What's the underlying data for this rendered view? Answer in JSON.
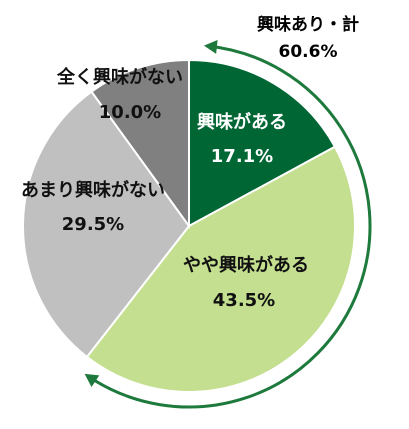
{
  "chart_data": {
    "type": "pie",
    "slices": [
      {
        "label": "興味がある",
        "value": 17.1,
        "value_label": "17.1%",
        "color": "#006633",
        "text_color": "#ffffff"
      },
      {
        "label": "やや興味がある",
        "value": 43.5,
        "value_label": "43.5%",
        "color": "#c4df8f",
        "text_color": "#111111"
      },
      {
        "label": "あまり興味がない",
        "value": 29.5,
        "value_label": "29.5%",
        "color": "#c0c0c0",
        "text_color": "#111111"
      },
      {
        "label": "全く興味がない",
        "value": 10.0,
        "value_label": "10.0%",
        "color": "#808080",
        "text_color": "#111111"
      }
    ],
    "annotation": {
      "title": "興味あり・計",
      "value_label": "60.6%",
      "covers": [
        "興味がある",
        "やや興味がある"
      ],
      "color": "#1e7a3c"
    },
    "start_angle": "12 o'clock",
    "direction": "clockwise"
  }
}
